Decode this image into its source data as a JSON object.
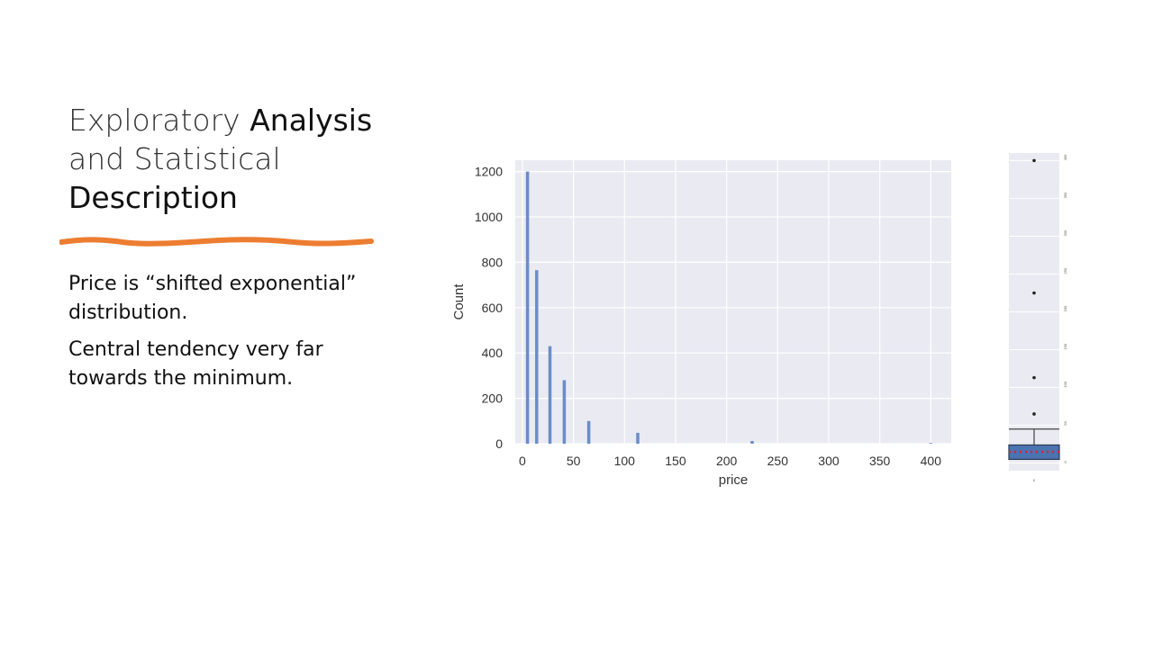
{
  "slide": {
    "title_part1": "Exploratory ",
    "title_part2": "Analysis",
    "title_part3": "and Statistical",
    "title_part4": "Description",
    "bullets": [
      "Price is “shifted exponential” distribution.",
      "Central tendency very far towards the minimum."
    ],
    "accent_color": "#ED7D31"
  },
  "chart_data": [
    {
      "type": "bar",
      "title": "",
      "xlabel": "price",
      "ylabel": "Count",
      "x": [
        5,
        14,
        27,
        41,
        65,
        113,
        225,
        400
      ],
      "values": [
        1200,
        765,
        430,
        280,
        100,
        48,
        12,
        3
      ],
      "xticks": [
        0,
        50,
        100,
        150,
        200,
        250,
        300,
        350,
        400
      ],
      "yticks": [
        0,
        200,
        400,
        600,
        800,
        1000,
        1200
      ],
      "xlim": [
        -7,
        420
      ],
      "ylim": [
        0,
        1250
      ],
      "grid": true,
      "bar_color": "#6A8CC7",
      "background": "#EAEAF2"
    },
    {
      "type": "box",
      "title": "",
      "ylim": [
        -10,
        410
      ],
      "whisker_low": 0,
      "q1": 5,
      "median": 15,
      "q3": 24,
      "whisker_high": 45,
      "outliers": [
        65,
        113,
        225,
        400
      ],
      "yticks": [
        0,
        50,
        100,
        150,
        200,
        250,
        300,
        350,
        400
      ],
      "xtick": "0",
      "box_color": "#4C72B0",
      "median_color": "#E02020",
      "grid": true,
      "background": "#EAEAF2"
    }
  ]
}
